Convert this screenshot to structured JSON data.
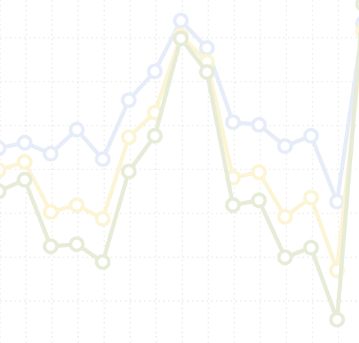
{
  "chart_data": {
    "type": "line",
    "title": "",
    "xlabel": "",
    "ylabel": "",
    "grid": true,
    "legend": "none",
    "x": [
      0,
      1,
      2,
      3,
      4,
      5,
      6,
      7,
      8,
      9,
      10,
      11,
      12,
      13,
      14
    ],
    "xlim": [
      0,
      14
    ],
    "ylim": [
      0,
      500
    ],
    "series": [
      {
        "color": "#e6edf9",
        "values": [
          284,
          292,
          276,
          311,
          268,
          354,
          396,
          470,
          430,
          322,
          318,
          287,
          302,
          206,
          466
        ]
      },
      {
        "color": "#fbf5d5",
        "values": [
          252,
          264,
          191,
          201,
          181,
          300,
          336,
          448,
          410,
          241,
          249,
          184,
          212,
          106,
          454
        ]
      },
      {
        "color": "#e6ecd7",
        "values": [
          221,
          238,
          141,
          144,
          118,
          250,
          302,
          444,
          395,
          201,
          208,
          125,
          139,
          34,
          494
        ]
      }
    ]
  }
}
